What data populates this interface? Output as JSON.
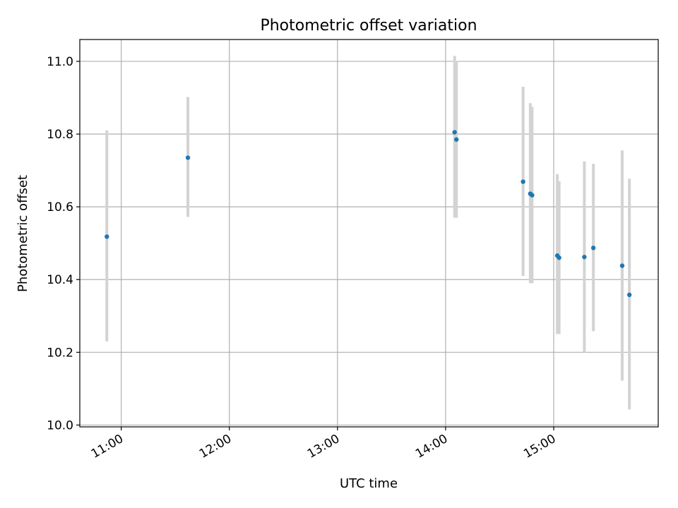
{
  "chart_data": {
    "type": "scatter",
    "title": "Photometric offset variation",
    "xlabel": "UTC time",
    "ylabel": "Photometric offset",
    "x_axis_type": "time",
    "xlim": [
      "10:37",
      "15:58"
    ],
    "ylim": [
      9.995,
      11.06
    ],
    "grid": true,
    "xticks": [
      "11:00",
      "12:00",
      "13:00",
      "14:00",
      "15:00"
    ],
    "yticks": [
      "10.0",
      "10.2",
      "10.4",
      "10.6",
      "10.8",
      "11.0"
    ],
    "colors": {
      "point": "#1f77b4",
      "errorbar": "#d3d3d3",
      "grid": "#b0b0b0"
    },
    "points": [
      {
        "time": "10:52",
        "y": 10.518,
        "ylow": 10.23,
        "yhigh": 10.81
      },
      {
        "time": "11:37",
        "y": 10.735,
        "ylow": 10.572,
        "yhigh": 10.902
      },
      {
        "time": "14:05",
        "y": 10.805,
        "ylow": 10.57,
        "yhigh": 11.015
      },
      {
        "time": "14:06",
        "y": 10.785,
        "ylow": 10.57,
        "yhigh": 11.0
      },
      {
        "time": "14:43",
        "y": 10.669,
        "ylow": 10.41,
        "yhigh": 10.93
      },
      {
        "time": "14:47",
        "y": 10.636,
        "ylow": 10.39,
        "yhigh": 10.885
      },
      {
        "time": "14:48",
        "y": 10.632,
        "ylow": 10.39,
        "yhigh": 10.875
      },
      {
        "time": "15:02",
        "y": 10.466,
        "ylow": 10.25,
        "yhigh": 10.69
      },
      {
        "time": "15:03",
        "y": 10.46,
        "ylow": 10.25,
        "yhigh": 10.67
      },
      {
        "time": "15:17",
        "y": 10.462,
        "ylow": 10.2,
        "yhigh": 10.725
      },
      {
        "time": "15:22",
        "y": 10.487,
        "ylow": 10.258,
        "yhigh": 10.718
      },
      {
        "time": "15:38",
        "y": 10.438,
        "ylow": 10.122,
        "yhigh": 10.755
      },
      {
        "time": "15:42",
        "y": 10.358,
        "ylow": 10.043,
        "yhigh": 10.677
      }
    ]
  }
}
